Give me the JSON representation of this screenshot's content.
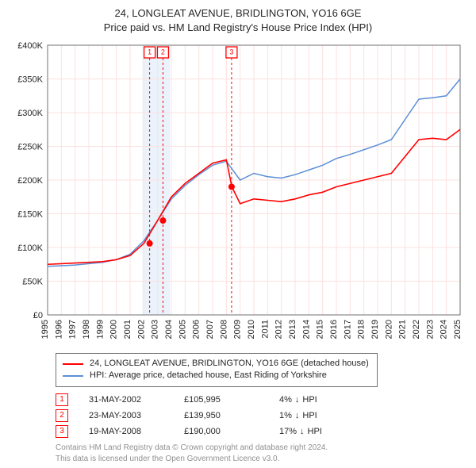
{
  "title_line1": "24, LONGLEAT AVENUE, BRIDLINGTON, YO16 6GE",
  "title_line2": "Price paid vs. HM Land Registry's House Price Index (HPI)",
  "chart": {
    "type": "line",
    "background_color": "#ffffff",
    "grid_color": "#fde0e0",
    "y_axis": {
      "min": 0,
      "max": 400000,
      "tick_step": 50000,
      "tick_format": "£{k}K",
      "ticks": [
        "£0",
        "£50K",
        "£100K",
        "£150K",
        "£200K",
        "£250K",
        "£300K",
        "£350K",
        "£400K"
      ]
    },
    "x_axis": {
      "min": 1995,
      "max": 2025,
      "ticks": [
        1995,
        1996,
        1997,
        1998,
        1999,
        2000,
        2001,
        2002,
        2003,
        2004,
        2005,
        2006,
        2007,
        2008,
        2009,
        2010,
        2011,
        2012,
        2013,
        2014,
        2015,
        2016,
        2017,
        2018,
        2019,
        2020,
        2021,
        2022,
        2023,
        2024,
        2025
      ],
      "label_rotation": -90,
      "label_fontsize": 11
    },
    "series": [
      {
        "name": "property",
        "label": "24, LONGLEAT AVENUE, BRIDLINGTON, YO16 6GE (detached house)",
        "color": "#ff0000",
        "line_width": 1.6,
        "points": [
          [
            1995,
            75000
          ],
          [
            1996,
            76000
          ],
          [
            1997,
            77000
          ],
          [
            1998,
            78000
          ],
          [
            1999,
            79000
          ],
          [
            2000,
            82000
          ],
          [
            2001,
            88000
          ],
          [
            2002,
            105995
          ],
          [
            2003,
            139950
          ],
          [
            2004,
            175000
          ],
          [
            2005,
            195000
          ],
          [
            2006,
            210000
          ],
          [
            2007,
            225000
          ],
          [
            2008,
            230000
          ],
          [
            2008.4,
            190000
          ],
          [
            2009,
            165000
          ],
          [
            2010,
            172000
          ],
          [
            2011,
            170000
          ],
          [
            2012,
            168000
          ],
          [
            2013,
            172000
          ],
          [
            2014,
            178000
          ],
          [
            2015,
            182000
          ],
          [
            2016,
            190000
          ],
          [
            2017,
            195000
          ],
          [
            2018,
            200000
          ],
          [
            2019,
            205000
          ],
          [
            2020,
            210000
          ],
          [
            2021,
            235000
          ],
          [
            2022,
            260000
          ],
          [
            2023,
            262000
          ],
          [
            2024,
            260000
          ],
          [
            2025,
            275000
          ]
        ]
      },
      {
        "name": "hpi",
        "label": "HPI: Average price, detached house, East Riding of Yorkshire",
        "color": "#5b8fd6",
        "line_width": 1.5,
        "points": [
          [
            1995,
            72000
          ],
          [
            1996,
            73000
          ],
          [
            1997,
            74000
          ],
          [
            1998,
            76000
          ],
          [
            1999,
            78000
          ],
          [
            2000,
            82000
          ],
          [
            2001,
            90000
          ],
          [
            2002,
            110000
          ],
          [
            2003,
            140000
          ],
          [
            2004,
            172000
          ],
          [
            2005,
            192000
          ],
          [
            2006,
            208000
          ],
          [
            2007,
            222000
          ],
          [
            2008,
            228000
          ],
          [
            2009,
            200000
          ],
          [
            2010,
            210000
          ],
          [
            2011,
            205000
          ],
          [
            2012,
            203000
          ],
          [
            2013,
            208000
          ],
          [
            2014,
            215000
          ],
          [
            2015,
            222000
          ],
          [
            2016,
            232000
          ],
          [
            2017,
            238000
          ],
          [
            2018,
            245000
          ],
          [
            2019,
            252000
          ],
          [
            2020,
            260000
          ],
          [
            2021,
            290000
          ],
          [
            2022,
            320000
          ],
          [
            2023,
            322000
          ],
          [
            2024,
            325000
          ],
          [
            2025,
            350000
          ]
        ]
      }
    ],
    "sale_markers": [
      {
        "n": "1",
        "year": 2002.42,
        "price": 105995
      },
      {
        "n": "2",
        "year": 2003.39,
        "price": 139950
      },
      {
        "n": "3",
        "year": 2008.38,
        "price": 190000
      }
    ],
    "highlight_band": {
      "from": 2001.9,
      "to": 2003.9,
      "color": "#eaf2fb"
    },
    "marker_line_color": "#ff0000",
    "marker_dot_fill": "#ff0000"
  },
  "legend": {
    "items": [
      {
        "color": "#ff0000",
        "label": "24, LONGLEAT AVENUE, BRIDLINGTON, YO16 6GE (detached house)"
      },
      {
        "color": "#5b8fd6",
        "label": "HPI: Average price, detached house, East Riding of Yorkshire"
      }
    ]
  },
  "sales": [
    {
      "n": "1",
      "date": "31-MAY-2002",
      "price": "£105,995",
      "diff": "4%",
      "dir": "↓",
      "cmp": "HPI"
    },
    {
      "n": "2",
      "date": "23-MAY-2003",
      "price": "£139,950",
      "diff": "1%",
      "dir": "↓",
      "cmp": "HPI"
    },
    {
      "n": "3",
      "date": "19-MAY-2008",
      "price": "£190,000",
      "diff": "17%",
      "dir": "↓",
      "cmp": "HPI"
    }
  ],
  "attribution_line1": "Contains HM Land Registry data © Crown copyright and database right 2024.",
  "attribution_line2": "This data is licensed under the Open Government Licence v3.0."
}
